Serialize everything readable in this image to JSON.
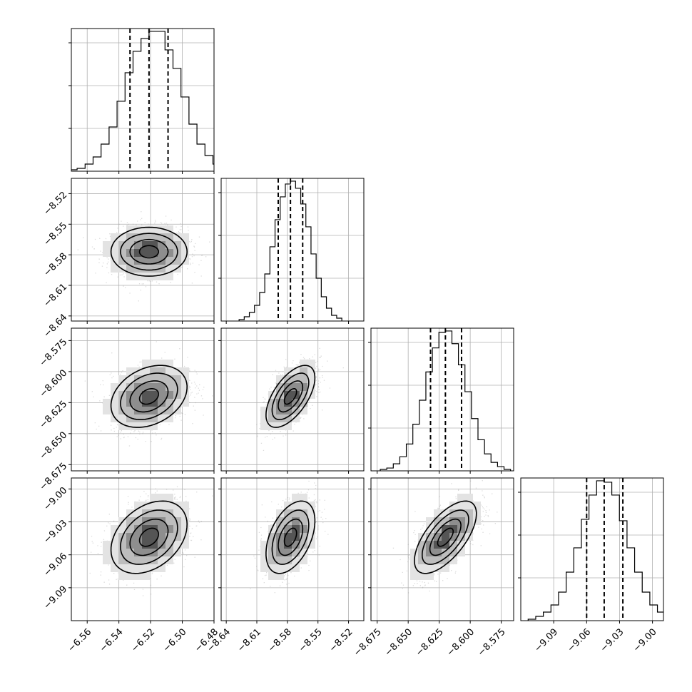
{
  "chart_data": {
    "type": "corner",
    "grid": true,
    "parameters": [
      {
        "range": [
          -6.57,
          -6.48
        ],
        "ticks": [
          -6.56,
          -6.54,
          -6.52,
          -6.5,
          -6.48
        ],
        "tick_labels": [
          "−6.56",
          "−6.54",
          "−6.52",
          "−6.50",
          "−6.48"
        ],
        "quantiles": [
          -6.533,
          -6.521,
          -6.509
        ],
        "mean": -6.521,
        "sd": 0.012
      },
      {
        "range": [
          -8.645,
          -8.505
        ],
        "ticks": [
          -8.64,
          -8.61,
          -8.58,
          -8.55,
          -8.52
        ],
        "tick_labels": [
          "−8.64",
          "−8.61",
          "−8.58",
          "−8.55",
          "−8.52"
        ],
        "quantiles": [
          -8.589,
          -8.577,
          -8.565
        ],
        "mean": -8.577,
        "sd": 0.012
      },
      {
        "range": [
          -8.68,
          -8.565
        ],
        "ticks": [
          -8.675,
          -8.65,
          -8.625,
          -8.6,
          -8.575
        ],
        "tick_labels": [
          "−8.675",
          "−8.650",
          "−8.625",
          "−8.600",
          "−8.575"
        ],
        "quantiles": [
          -8.632,
          -8.62,
          -8.607
        ],
        "mean": -8.62,
        "sd": 0.0125
      },
      {
        "range": [
          -9.12,
          -8.99
        ],
        "ticks": [
          -9.09,
          -9.06,
          -9.03,
          -9.0
        ],
        "tick_labels": [
          "−9.09",
          "−9.06",
          "−9.03",
          "−9.00"
        ],
        "quantiles": [
          -9.06,
          -9.044,
          -9.027
        ],
        "mean": -9.044,
        "sd": 0.0165
      }
    ],
    "histograms": [
      [
        1,
        2,
        5,
        10,
        19,
        31,
        49,
        69,
        84,
        93,
        98,
        98,
        85,
        72,
        52,
        33,
        19,
        11,
        5,
        2
      ],
      [
        1,
        3,
        6,
        11,
        20,
        33,
        52,
        71,
        87,
        96,
        98,
        93,
        82,
        66,
        47,
        30,
        17,
        9,
        4,
        2
      ],
      [
        1,
        2,
        5,
        10,
        19,
        33,
        50,
        70,
        87,
        98,
        99,
        90,
        75,
        56,
        37,
        22,
        12,
        6,
        3,
        1
      ],
      [
        1,
        3,
        6,
        11,
        20,
        34,
        51,
        71,
        88,
        98,
        97,
        88,
        70,
        51,
        34,
        20,
        11,
        6,
        3,
        1
      ]
    ],
    "correlations": {
      "1-0": 0.0,
      "2-0": 0.3,
      "2-1": 0.6,
      "3-0": 0.35,
      "3-1": 0.45,
      "3-2": 0.65
    },
    "colors": {
      "line": "#000000",
      "grid": "#b0b0b0",
      "points": "#9a9a9a"
    }
  }
}
